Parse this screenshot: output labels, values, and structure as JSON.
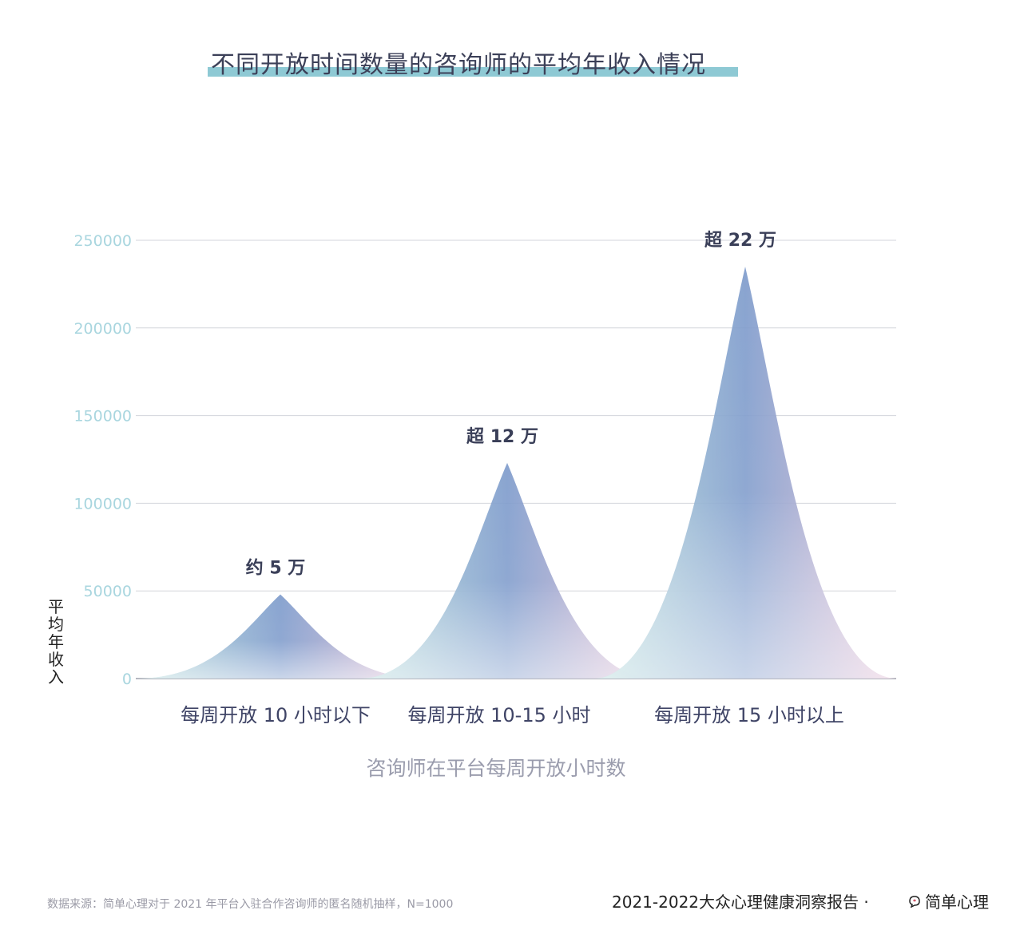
{
  "title": "不同开放时间数量的咨询师的平均年收入情况",
  "chart_data": {
    "type": "area",
    "title": "不同开放时间数量的咨询师的平均年收入情况",
    "xlabel": "咨询师在平台每周开放小时数",
    "ylabel": "平均年收入",
    "ylim": [
      0,
      250000
    ],
    "yticks": [
      "0",
      "50000",
      "100000",
      "150000",
      "200000",
      "250000"
    ],
    "grid": true,
    "categories": [
      "每周开放 10 小时以下",
      "每周开放 10-15 小时",
      "每周开放 15 小时以上"
    ],
    "values": [
      48000,
      123000,
      235000
    ],
    "data_labels": [
      "约 5 万",
      "超 12 万",
      "超 22 万"
    ]
  },
  "colors": {
    "title_underline": "#8ec9d4",
    "tick": "#a9d6df",
    "grid": "#d3d5dc",
    "peak_top": "#7f9ccc",
    "peak_left": "#b8e0dc",
    "peak_right": "#e9c0d6"
  },
  "footer": {
    "source": "数据来源：简单心理对于 2021 年平台入驻合作咨询师的匿名随机抽样，N=1000",
    "report": "2021-2022大众心理健康洞察报告 ·",
    "brand": "简单心理",
    "brand_icon": "brand-logo-icon"
  }
}
